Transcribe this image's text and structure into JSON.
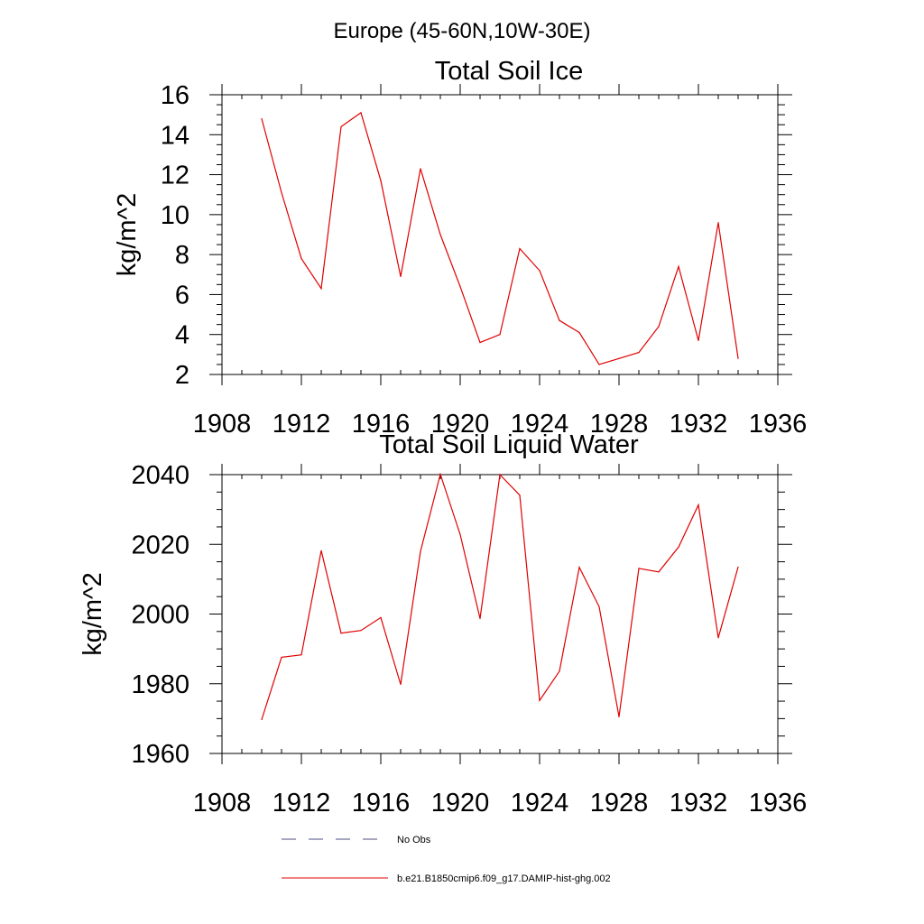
{
  "suptitle": "Europe (45-60N,10W-30E)",
  "legend": {
    "entries": [
      {
        "label": "No Obs",
        "color": "#4d4d80",
        "style": "dashed"
      },
      {
        "label": "b.e21.B1850cmip6.f09_g17.DAMIP-hist-ghg.002",
        "color": "#e00000",
        "style": "solid"
      }
    ]
  },
  "colors": {
    "line": "#e00000",
    "axis": "#000000",
    "background": "#ffffff"
  },
  "chart_data": [
    {
      "type": "line",
      "title": "Total Soil Ice",
      "xlabel": "",
      "ylabel": "kg/m^2",
      "xlim": [
        1908,
        1936
      ],
      "ylim": [
        2,
        16
      ],
      "x_ticks": [
        1908,
        1912,
        1916,
        1920,
        1924,
        1928,
        1932,
        1936
      ],
      "y_ticks": [
        2,
        4,
        6,
        8,
        10,
        12,
        14,
        16
      ],
      "grid": false,
      "x": [
        1910,
        1911,
        1912,
        1913,
        1914,
        1915,
        1916,
        1917,
        1918,
        1919,
        1920,
        1921,
        1922,
        1923,
        1924,
        1925,
        1926,
        1927,
        1928,
        1929,
        1930,
        1931,
        1932,
        1933,
        1934
      ],
      "values": [
        14.8,
        11.1,
        7.8,
        6.3,
        14.4,
        15.1,
        11.7,
        6.9,
        12.3,
        9.0,
        6.4,
        3.6,
        4.0,
        8.3,
        7.2,
        4.7,
        4.1,
        2.5,
        2.8,
        3.1,
        4.4,
        7.4,
        3.7,
        9.6,
        2.8
      ]
    },
    {
      "type": "line",
      "title": "Total Soil Liquid Water",
      "xlabel": "",
      "ylabel": "kg/m^2",
      "xlim": [
        1908,
        1936
      ],
      "ylim": [
        1960,
        2040
      ],
      "x_ticks": [
        1908,
        1912,
        1916,
        1920,
        1924,
        1928,
        1932,
        1936
      ],
      "y_ticks": [
        1960,
        1980,
        2000,
        2020,
        2040
      ],
      "grid": false,
      "x": [
        1910,
        1911,
        1912,
        1913,
        1914,
        1915,
        1916,
        1917,
        1918,
        1919,
        1920,
        1921,
        1922,
        1923,
        1924,
        1925,
        1926,
        1927,
        1928,
        1929,
        1930,
        1931,
        1932,
        1933,
        1934
      ],
      "values": [
        1969.7,
        1987.6,
        1988.3,
        2018.2,
        1994.5,
        1995.3,
        1999.0,
        1979.8,
        2018.0,
        2040.1,
        2022.8,
        1998.7,
        2040.0,
        2034.1,
        1975.2,
        1983.6,
        2013.4,
        2002.1,
        1970.5,
        2013.1,
        2012.1,
        2019.2,
        2031.3,
        1993.2,
        2013.5
      ]
    }
  ]
}
